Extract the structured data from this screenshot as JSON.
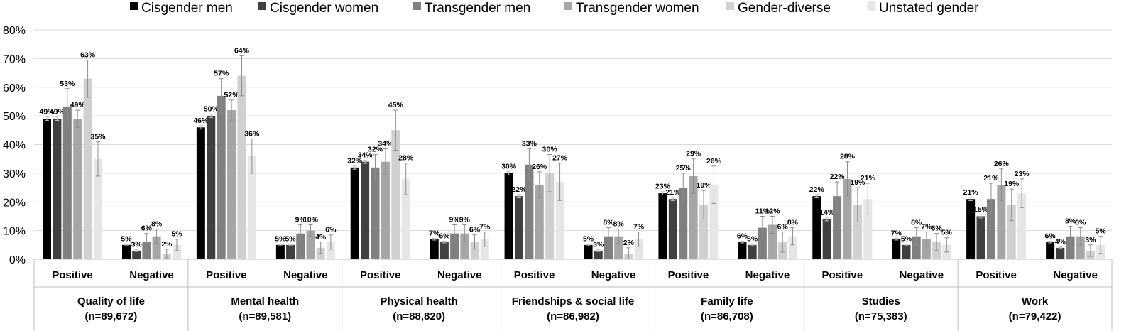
{
  "chart_data": {
    "type": "bar",
    "title": "",
    "xlabel": "",
    "ylabel": "",
    "ylim": [
      0,
      80
    ],
    "yticks": [
      "0%",
      "10%",
      "20%",
      "30%",
      "40%",
      "50%",
      "60%",
      "70%",
      "80%"
    ],
    "grid": true,
    "legend_position": "top",
    "series": [
      {
        "name": "Cisgender men",
        "color": "#000000"
      },
      {
        "name": "Cisgender women",
        "color": "#404040"
      },
      {
        "name": "Transgender men",
        "color": "#808080"
      },
      {
        "name": "Transgender women",
        "color": "#a6a6a6"
      },
      {
        "name": "Gender-diverse",
        "color": "#d0d0d0"
      },
      {
        "name": "Unstated gender",
        "color": "#e6e6e6"
      }
    ],
    "domains": [
      {
        "name": "Quality of life",
        "n": "(n=89,672)",
        "groups": [
          {
            "label": "Positive",
            "values": [
              49,
              49,
              53,
              49,
              63,
              35
            ],
            "labels": [
              "49%",
              "49%",
              "53%",
              "49%",
              "63%",
              "35%"
            ],
            "errors": [
              0.6,
              0.6,
              6.5,
              3.0,
              6.5,
              6.0
            ]
          },
          {
            "label": "Negative",
            "values": [
              5,
              3,
              6,
              8,
              2,
              5
            ],
            "labels": [
              "5%",
              "3%",
              "6%",
              "8%",
              "2%",
              "5%"
            ],
            "errors": [
              0.3,
              0.3,
              3.0,
              2.5,
              1.5,
              2.0
            ]
          }
        ]
      },
      {
        "name": "Mental health",
        "n": "(n=89,581)",
        "groups": [
          {
            "label": "Positive",
            "values": [
              46,
              50,
              57,
              52,
              64,
              36
            ],
            "labels": [
              "46%",
              "50%",
              "57%",
              "52%",
              "64%",
              "36%"
            ],
            "errors": [
              0.6,
              0.6,
              6.0,
              3.5,
              7.0,
              6.0
            ]
          },
          {
            "label": "Negative",
            "values": [
              5,
              5,
              9,
              10,
              4,
              6
            ],
            "labels": [
              "5%",
              "5%",
              "9%",
              "10%",
              "4%",
              "6%"
            ],
            "errors": [
              0.3,
              0.3,
              3.0,
              2.0,
              2.0,
              2.5
            ]
          }
        ]
      },
      {
        "name": "Physical health",
        "n": "(n=88,820)",
        "groups": [
          {
            "label": "Positive",
            "values": [
              32,
              34,
              32,
              34,
              45,
              28
            ],
            "labels": [
              "32%",
              "34%",
              "32%",
              "34%",
              "45%",
              "28%"
            ],
            "errors": [
              0.6,
              0.6,
              4.5,
              4.5,
              7.0,
              5.5
            ]
          },
          {
            "label": "Negative",
            "values": [
              7,
              6,
              9,
              9,
              6,
              7
            ],
            "labels": [
              "7%",
              "6%",
              "9%",
              "9%",
              "6%",
              "7%"
            ],
            "errors": [
              0.3,
              0.3,
              3.0,
              3.0,
              2.5,
              2.5
            ]
          }
        ]
      },
      {
        "name": "Friendships & social life",
        "n": "(n=86,982)",
        "groups": [
          {
            "label": "Positive",
            "values": [
              30,
              22,
              33,
              26,
              30,
              27
            ],
            "labels": [
              "30%",
              "22%",
              "33%",
              "26%",
              "30%",
              "27%"
            ],
            "errors": [
              0.6,
              0.6,
              5.5,
              4.5,
              6.5,
              6.5
            ]
          },
          {
            "label": "Negative",
            "values": [
              5,
              3,
              8,
              8,
              2,
              7
            ],
            "labels": [
              "5%",
              "3%",
              "8%",
              "8%",
              "2%",
              "7%"
            ],
            "errors": [
              0.3,
              0.3,
              3.0,
              2.5,
              2.0,
              2.5
            ]
          }
        ]
      },
      {
        "name": "Family life",
        "n": "(n=86,708)",
        "groups": [
          {
            "label": "Positive",
            "values": [
              23,
              21,
              25,
              29,
              19,
              26
            ],
            "labels": [
              "23%",
              "21%",
              "25%",
              "29%",
              "19%",
              "26%"
            ],
            "errors": [
              0.6,
              0.6,
              5.0,
              6.0,
              5.0,
              6.5
            ]
          },
          {
            "label": "Negative",
            "values": [
              6,
              5,
              11,
              12,
              6,
              8
            ],
            "labels": [
              "6%",
              "5%",
              "11%",
              "12%",
              "6%",
              "8%"
            ],
            "errors": [
              0.3,
              0.3,
              4.0,
              3.0,
              3.5,
              3.0
            ]
          }
        ]
      },
      {
        "name": "Studies",
        "n": "(n=75,383)",
        "groups": [
          {
            "label": "Positive",
            "values": [
              22,
              14,
              22,
              28,
              19,
              21
            ],
            "labels": [
              "22%",
              "14%",
              "22%",
              "28%",
              "19%",
              "21%"
            ],
            "errors": [
              0.6,
              0.6,
              5.0,
              6.0,
              6.0,
              5.5
            ]
          },
          {
            "label": "Negative",
            "values": [
              7,
              5,
              8,
              7,
              6,
              5
            ],
            "labels": [
              "7%",
              "5%",
              "8%",
              "7%",
              "6%",
              "5%"
            ],
            "errors": [
              0.3,
              0.3,
              3.0,
              2.5,
              3.0,
              2.5
            ]
          }
        ]
      },
      {
        "name": "Work",
        "n": "(n=79,422)",
        "groups": [
          {
            "label": "Positive",
            "values": [
              21,
              15,
              21,
              26,
              19,
              23
            ],
            "labels": [
              "21%",
              "15%",
              "21%",
              "26%",
              "19%",
              "23%"
            ],
            "errors": [
              0.6,
              0.6,
              5.5,
              5.5,
              5.5,
              5.0
            ]
          },
          {
            "label": "Negative",
            "values": [
              6,
              4,
              8,
              8,
              3,
              5
            ],
            "labels": [
              "6%",
              "4%",
              "8%",
              "8%",
              "3%",
              "5%"
            ],
            "errors": [
              0.3,
              0.3,
              3.5,
              3.0,
              2.0,
              3.0
            ]
          }
        ]
      }
    ]
  }
}
